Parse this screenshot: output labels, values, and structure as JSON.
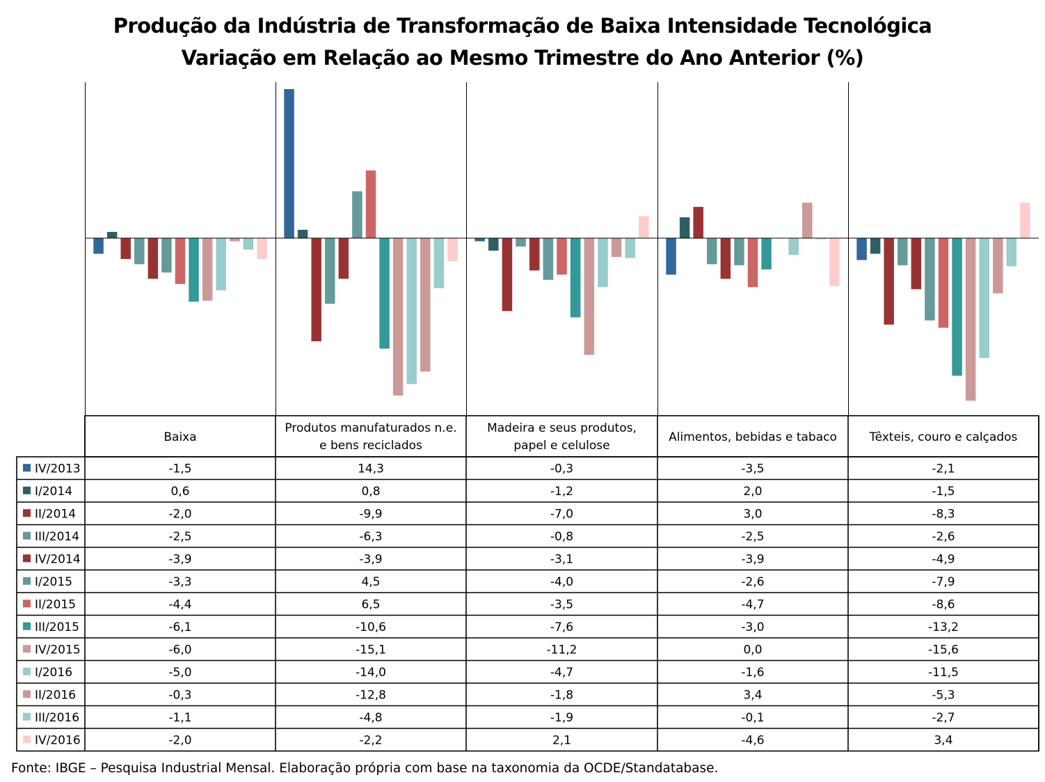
{
  "title_line1": "Produção da Indústria de Transformação de Baixa Intensidade Tecnológica",
  "title_line2": "Variação em Relação ao Mesmo Trimestre do Ano Anterior (%)",
  "source": "Fonte: IBGE – Pesquisa Industrial Mensal. Elaboração própria com base na taxonomia da OCDE/Standatabase.",
  "chart_data": {
    "type": "bar",
    "grid": false,
    "legend": "data-table-left",
    "ylim": [
      -17.6,
      15.1
    ],
    "categories": [
      "Baixa",
      "Produtos manufaturados n.e. e bens reciclados",
      "Madeira e seus produtos, papel e celulose",
      "Alimentos, bebidas e tabaco",
      "Têxteis, couro e calçados"
    ],
    "category_label_lines": [
      [
        "Baixa"
      ],
      [
        "Produtos manufaturados n.e.",
        "e bens reciclados"
      ],
      [
        "Madeira e seus produtos,",
        "papel e celulose"
      ],
      [
        "Alimentos, bebidas e tabaco"
      ],
      [
        "Têxteis, couro e calçados"
      ]
    ],
    "series": [
      {
        "name": "IV/2013",
        "color": "#336699",
        "values": [
          -1.5,
          14.3,
          -0.3,
          -3.5,
          -2.1
        ],
        "labels": [
          "-1,5",
          "14,3",
          "-0,3",
          "-3,5",
          "-2,1"
        ]
      },
      {
        "name": "I/2014",
        "color": "#2F5F64",
        "values": [
          0.6,
          0.8,
          -1.2,
          2.0,
          -1.5
        ],
        "labels": [
          "0,6",
          "0,8",
          "-1,2",
          "2,0",
          "-1,5"
        ]
      },
      {
        "name": "II/2014",
        "color": "#993333",
        "values": [
          -2.0,
          -9.9,
          -7.0,
          3.0,
          -8.3
        ],
        "labels": [
          "-2,0",
          "-9,9",
          "-7,0",
          "3,0",
          "-8,3"
        ]
      },
      {
        "name": "III/2014",
        "color": "#669999",
        "values": [
          -2.5,
          -6.3,
          -0.8,
          -2.5,
          -2.6
        ],
        "labels": [
          "-2,5",
          "-6,3",
          "-0,8",
          "-2,5",
          "-2,6"
        ]
      },
      {
        "name": "IV/2014",
        "color": "#993333",
        "values": [
          -3.9,
          -3.9,
          -3.1,
          -3.9,
          -4.9
        ],
        "labels": [
          "-3,9",
          "-3,9",
          "-3,1",
          "-3,9",
          "-4,9"
        ]
      },
      {
        "name": "I/2015",
        "color": "#669999",
        "values": [
          -3.3,
          4.5,
          -4.0,
          -2.6,
          -7.9
        ],
        "labels": [
          "-3,3",
          "4,5",
          "-4,0",
          "-2,6",
          "-7,9"
        ]
      },
      {
        "name": "II/2015",
        "color": "#CC6666",
        "values": [
          -4.4,
          6.5,
          -3.5,
          -4.7,
          -8.6
        ],
        "labels": [
          "-4,4",
          "6,5",
          "-3,5",
          "-4,7",
          "-8,6"
        ]
      },
      {
        "name": "III/2015",
        "color": "#339999",
        "values": [
          -6.1,
          -10.6,
          -7.6,
          -3.0,
          -13.2
        ],
        "labels": [
          "-6,1",
          "-10,6",
          "-7,6",
          "-3,0",
          "-13,2"
        ]
      },
      {
        "name": "IV/2015",
        "color": "#CC9999",
        "values": [
          -6.0,
          -15.1,
          -11.2,
          0.0,
          -15.6
        ],
        "labels": [
          "-6,0",
          "-15,1",
          "-11,2",
          "0,0",
          "-15,6"
        ]
      },
      {
        "name": "I/2016",
        "color": "#99CCCC",
        "values": [
          -5.0,
          -14.0,
          -4.7,
          -1.6,
          -11.5
        ],
        "labels": [
          "-5,0",
          "-14,0",
          "-4,7",
          "-1,6",
          "-11,5"
        ]
      },
      {
        "name": "II/2016",
        "color": "#CC9999",
        "values": [
          -0.3,
          -12.8,
          -1.8,
          3.4,
          -5.3
        ],
        "labels": [
          "-0,3",
          "-12,8",
          "-1,8",
          "3,4",
          "-5,3"
        ]
      },
      {
        "name": "III/2016",
        "color": "#99CCCC",
        "values": [
          -1.1,
          -4.8,
          -1.9,
          -0.1,
          -2.7
        ],
        "labels": [
          "-1,1",
          "-4,8",
          "-1,9",
          "-0,1",
          "-2,7"
        ]
      },
      {
        "name": "IV/2016",
        "color": "#FFCCCC",
        "values": [
          -2.0,
          -2.2,
          2.1,
          -4.6,
          3.4
        ],
        "labels": [
          "-2,0",
          "-2,2",
          "2,1",
          "-4,6",
          "3,4"
        ]
      }
    ]
  }
}
